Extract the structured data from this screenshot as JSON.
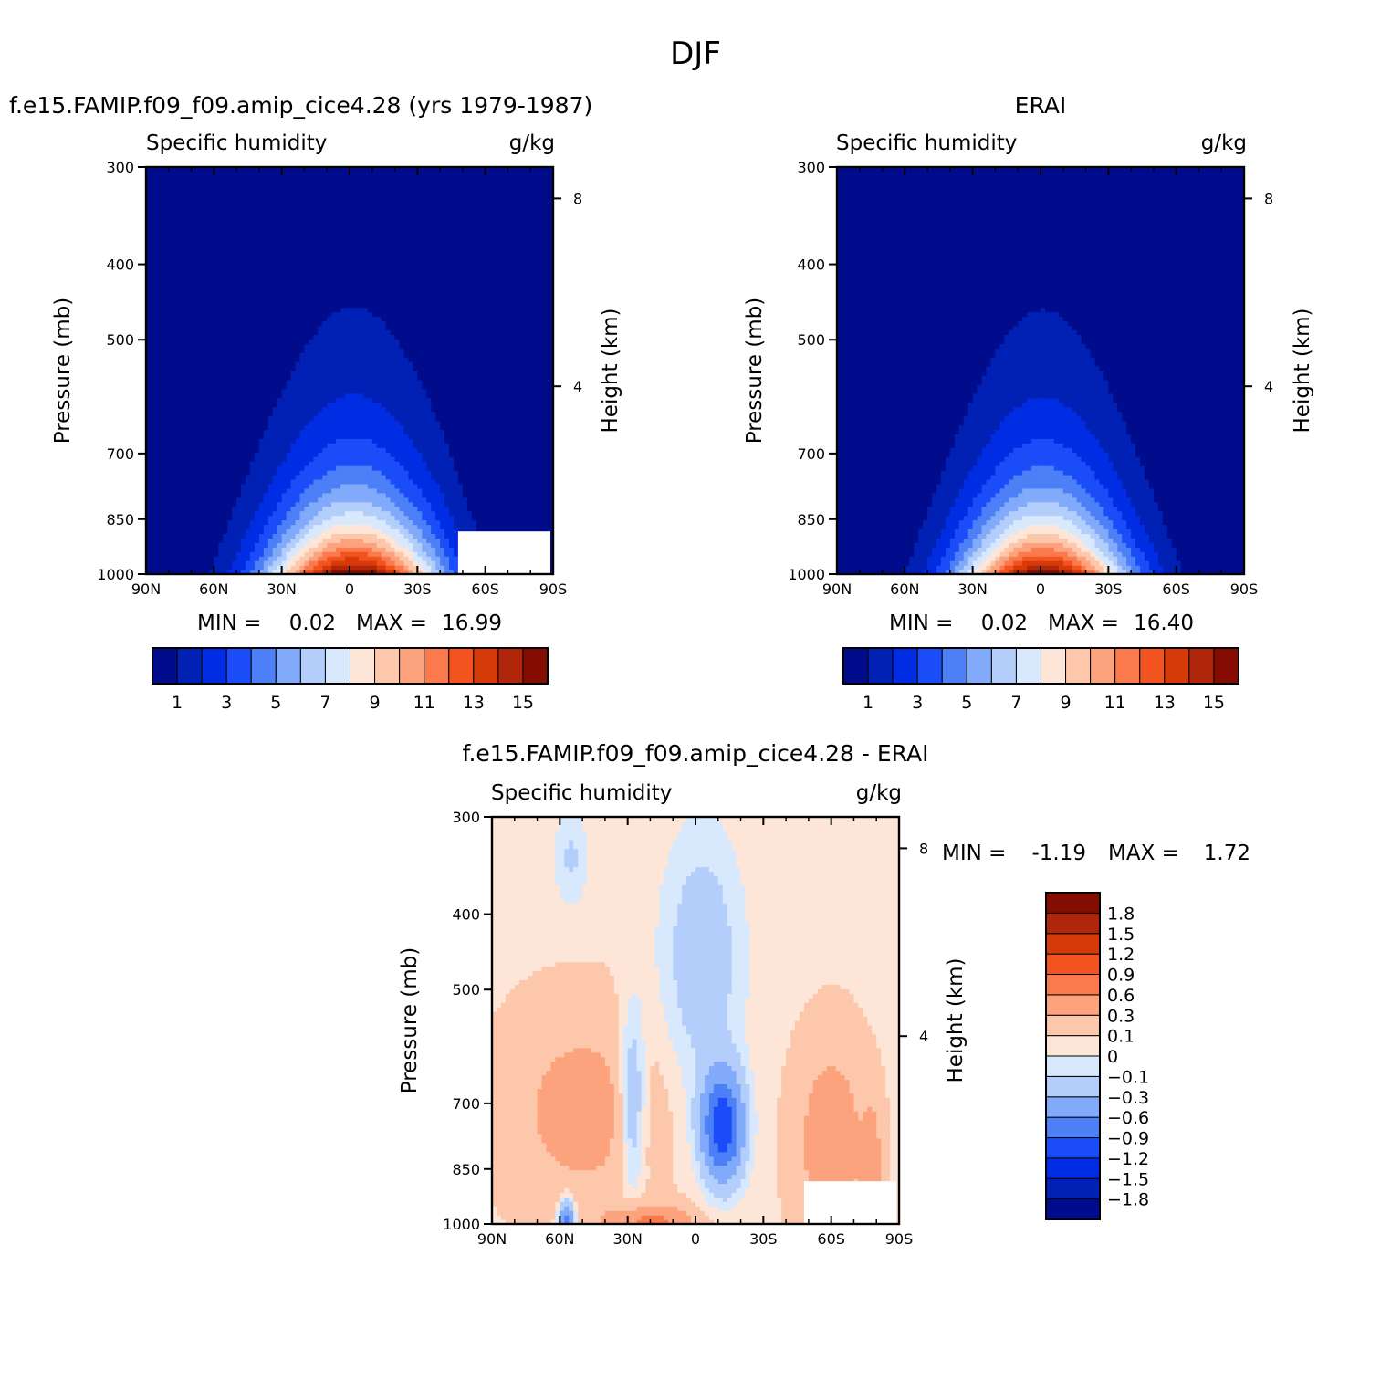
{
  "figure_title": "DJF",
  "chart_data": [
    {
      "type": "contour",
      "id": "model",
      "title": "f.e15.FAMIP.f09_f09.amip_cice4.28 (yrs 1979-1987)",
      "left_string": "Specific humidity",
      "right_string": "g/kg",
      "ylabel": "Pressure (mb)",
      "ylabel_right": "Height (km)",
      "x_ticks": [
        "90N",
        "60N",
        "30N",
        "0",
        "30S",
        "60S",
        "90S"
      ],
      "x_lim": [
        90,
        -90
      ],
      "y_ticks": [
        "300",
        "400",
        "500",
        "700",
        "850",
        "1000"
      ],
      "y_lim": [
        1000,
        300
      ],
      "height_ticks": [
        "8",
        "4"
      ],
      "min_label": "MIN =",
      "min_value": "0.02",
      "max_label": "MAX =",
      "max_value": "16.99",
      "levels": [
        1,
        2,
        3,
        4,
        5,
        6,
        7,
        8,
        9,
        10,
        11,
        12,
        13,
        14,
        15
      ],
      "colorbar_labels": [
        "1",
        "3",
        "5",
        "7",
        "9",
        "11",
        "13",
        "15"
      ],
      "peak_value": 16.99,
      "peak_lat": -3,
      "surface_missing_lat_from": -48
    },
    {
      "type": "contour",
      "id": "obs",
      "title": "ERAI",
      "left_string": "Specific humidity",
      "right_string": "g/kg",
      "ylabel": "Pressure (mb)",
      "ylabel_right": "Height (km)",
      "x_ticks": [
        "90N",
        "60N",
        "30N",
        "0",
        "30S",
        "60S",
        "90S"
      ],
      "x_lim": [
        90,
        -90
      ],
      "y_ticks": [
        "300",
        "400",
        "500",
        "700",
        "850",
        "1000"
      ],
      "y_lim": [
        1000,
        300
      ],
      "height_ticks": [
        "8",
        "4"
      ],
      "min_label": "MIN =",
      "min_value": "0.02",
      "max_label": "MAX =",
      "max_value": "16.40",
      "levels": [
        1,
        2,
        3,
        4,
        5,
        6,
        7,
        8,
        9,
        10,
        11,
        12,
        13,
        14,
        15
      ],
      "colorbar_labels": [
        "1",
        "3",
        "5",
        "7",
        "9",
        "11",
        "13",
        "15"
      ],
      "peak_value": 16.4,
      "peak_lat": -2
    },
    {
      "type": "contour",
      "id": "diff",
      "title": "f.e15.FAMIP.f09_f09.amip_cice4.28 - ERAI",
      "left_string": "Specific humidity",
      "right_string": "g/kg",
      "ylabel": "Pressure (mb)",
      "ylabel_right": "Height (km)",
      "x_ticks": [
        "90N",
        "60N",
        "30N",
        "0",
        "30S",
        "60S",
        "90S"
      ],
      "x_lim": [
        90,
        -90
      ],
      "y_ticks": [
        "300",
        "400",
        "500",
        "700",
        "850",
        "1000"
      ],
      "y_lim": [
        1000,
        300
      ],
      "height_ticks": [
        "8",
        "4"
      ],
      "min_label": "MIN =",
      "min_value": "-1.19",
      "max_label": "MAX =",
      "max_value": "1.72",
      "levels": [
        -1.8,
        -1.5,
        -1.2,
        -0.9,
        -0.6,
        -0.3,
        -0.1,
        0,
        0.1,
        0.3,
        0.6,
        0.9,
        1.2,
        1.5,
        1.8
      ],
      "colorbar_labels": [
        "1.8",
        "1.5",
        "1.2",
        "0.9",
        "0.6",
        "0.3",
        "0.1",
        "0",
        "-0.1",
        "-0.3",
        "-0.6",
        "-0.9",
        "-1.2",
        "-1.5",
        "-1.8"
      ],
      "surface_missing_lat_from": -48
    }
  ],
  "colors": {
    "palette": [
      "#000c8c",
      "#0021b4",
      "#002de3",
      "#1a4cf7",
      "#4d7ff7",
      "#82aafa",
      "#b4cefb",
      "#d9e9fd",
      "#fde6d7",
      "#fcc7ab",
      "#fca37e",
      "#fa7a4d",
      "#f2531f",
      "#d63a08",
      "#b0260a",
      "#850c00"
    ],
    "missing": "#ffffff",
    "axis": "#000000"
  }
}
